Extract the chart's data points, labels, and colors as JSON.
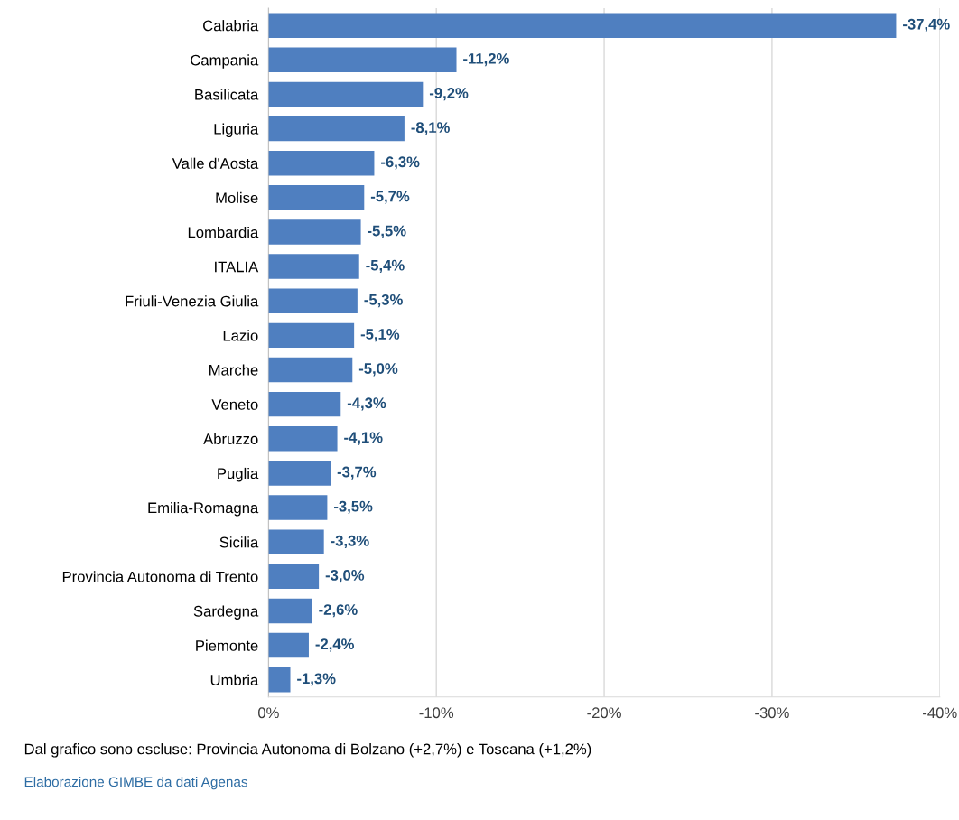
{
  "chart_data": {
    "type": "bar",
    "orientation": "horizontal",
    "categories": [
      "Calabria",
      "Campania",
      "Basilicata",
      "Liguria",
      "Valle d'Aosta",
      "Molise",
      "Lombardia",
      "ITALIA",
      "Friuli-Venezia Giulia",
      "Lazio",
      "Marche",
      "Veneto",
      "Abruzzo",
      "Puglia",
      "Emilia-Romagna",
      "Sicilia",
      "Provincia Autonoma di Trento",
      "Sardegna",
      "Piemonte",
      "Umbria"
    ],
    "values": [
      -37.4,
      -11.2,
      -9.2,
      -8.1,
      -6.3,
      -5.7,
      -5.5,
      -5.4,
      -5.3,
      -5.1,
      -5.0,
      -4.3,
      -4.1,
      -3.7,
      -3.5,
      -3.3,
      -3.0,
      -2.6,
      -2.4,
      -1.3
    ],
    "value_labels": [
      "-37,4%",
      "-11,2%",
      "-9,2%",
      "-8,1%",
      "-6,3%",
      "-5,7%",
      "-5,5%",
      "-5,4%",
      "-5,3%",
      "-5,1%",
      "-5,0%",
      "-4,3%",
      "-4,1%",
      "-3,7%",
      "-3,5%",
      "-3,3%",
      "-3,0%",
      "-2,6%",
      "-2,4%",
      "-1,3%"
    ],
    "color": "#4f7fc0",
    "xlim": [
      0,
      -40
    ],
    "xticks": [
      {
        "value": 0,
        "label": "0%"
      },
      {
        "value": -10,
        "label": "-10%"
      },
      {
        "value": -20,
        "label": "-20%"
      },
      {
        "value": -30,
        "label": "-30%"
      },
      {
        "value": -40,
        "label": "-40%"
      }
    ],
    "grid": "x",
    "legend": false,
    "annotations": [
      "Dal grafico sono escluse: Provincia Autonoma di Bolzano (+2,7%) e Toscana (+1,2%)",
      "Elaborazione GIMBE da dati Agenas"
    ]
  }
}
